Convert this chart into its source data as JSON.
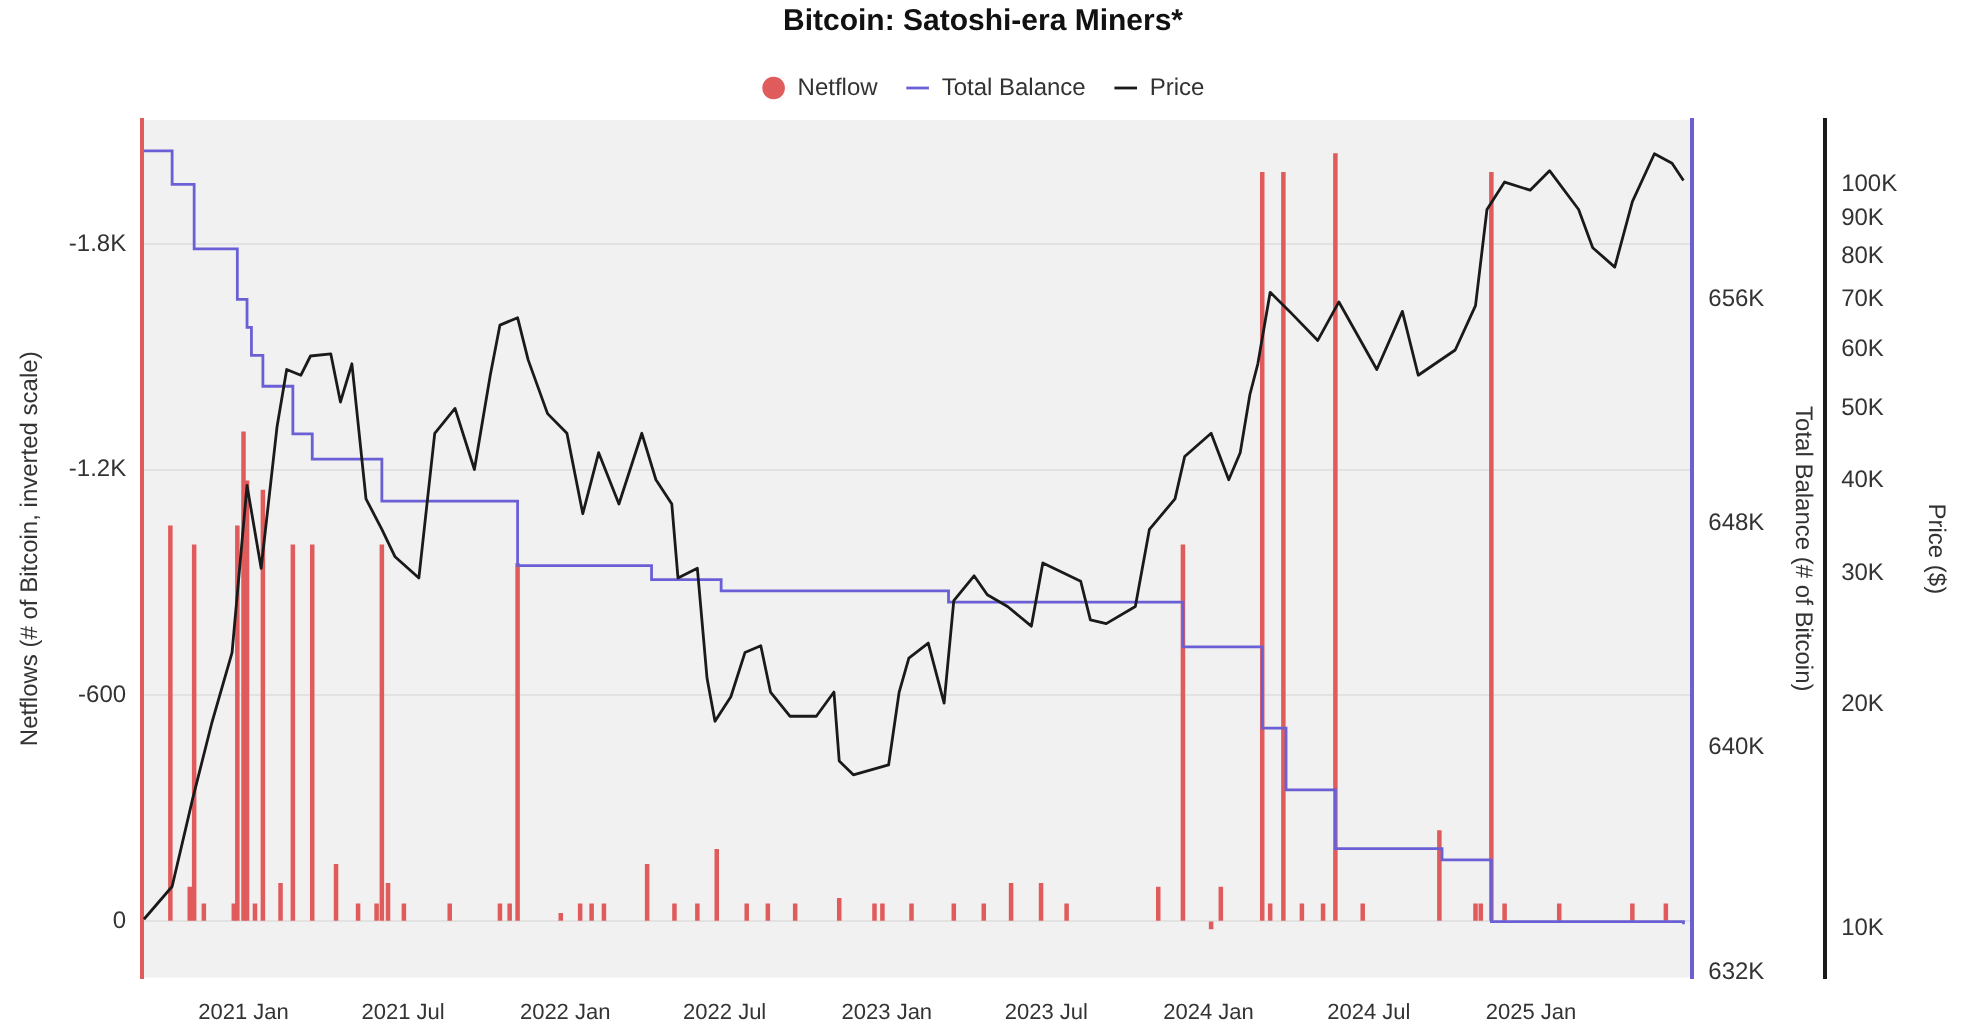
{
  "chart_data": {
    "type": "line",
    "title": "Bitcoin: Satoshi-era Miners*",
    "ylabel": "Netflows (# of Bitcoin, inverted scale)",
    "y2label": "Total Balance (# of Bitcoin)",
    "y3label": "Price ($)",
    "xlim": [
      "2020-09-08",
      "2025-07-03"
    ],
    "xticks": [
      {
        "value": "2021-01-01",
        "label": "2021 Jan"
      },
      {
        "value": "2021-07-01",
        "label": "2021 Jul"
      },
      {
        "value": "2022-01-01",
        "label": "2022 Jan"
      },
      {
        "value": "2022-07-01",
        "label": "2022 Jul"
      },
      {
        "value": "2023-01-01",
        "label": "2023 Jan"
      },
      {
        "value": "2023-07-01",
        "label": "2023 Jul"
      },
      {
        "value": "2024-01-01",
        "label": "2024 Jan"
      },
      {
        "value": "2024-07-01",
        "label": "2024 Jul"
      },
      {
        "value": "2025-01-01",
        "label": "2025 Jan"
      }
    ],
    "ylim": [
      150,
      -2130
    ],
    "yticks": [
      {
        "value": 0,
        "label": "0"
      },
      {
        "value": -600,
        "label": "-600"
      },
      {
        "value": -1200,
        "label": "-1.2K"
      },
      {
        "value": -1800,
        "label": "-1.8K"
      }
    ],
    "y2lim": [
      631.8,
      662.4
    ],
    "y2ticks": [
      {
        "value": 632,
        "label": "632K"
      },
      {
        "value": 640,
        "label": "640K"
      },
      {
        "value": 648,
        "label": "648K"
      },
      {
        "value": 656,
        "label": "656K"
      }
    ],
    "y3lim": [
      8.6,
      122
    ],
    "y3ticks": [
      {
        "value": 10,
        "label": "10K"
      },
      {
        "value": 20,
        "label": "20K"
      },
      {
        "value": 30,
        "label": "30K"
      },
      {
        "value": 40,
        "label": "40K"
      },
      {
        "value": 50,
        "label": "50K"
      },
      {
        "value": 60,
        "label": "60K"
      },
      {
        "value": 70,
        "label": "70K"
      },
      {
        "value": 80,
        "label": "80K"
      },
      {
        "value": 90,
        "label": "90K"
      },
      {
        "value": 100,
        "label": "100K"
      }
    ],
    "log": "y3",
    "grid": "y",
    "legend": "top",
    "marker": "none",
    "series": [
      {
        "name": "Netflow",
        "type": "bar",
        "axis": "y",
        "color": "#e05c5c",
        "x": [
          "2020-10-10",
          "2020-11-01",
          "2020-11-06",
          "2020-11-17",
          "2020-12-21",
          "2020-12-25",
          "2021-01-01",
          "2021-01-05",
          "2021-01-14",
          "2021-01-23",
          "2021-02-12",
          "2021-02-26",
          "2021-03-20",
          "2021-04-16",
          "2021-05-11",
          "2021-06-01",
          "2021-06-07",
          "2021-06-14",
          "2021-07-02",
          "2021-08-23",
          "2021-10-19",
          "2021-10-30",
          "2021-11-08",
          "2021-12-27",
          "2022-01-18",
          "2022-01-31",
          "2022-02-14",
          "2022-04-04",
          "2022-05-05",
          "2022-05-31",
          "2022-06-22",
          "2022-07-26",
          "2022-08-19",
          "2022-09-19",
          "2022-11-08",
          "2022-12-18",
          "2022-12-27",
          "2023-01-29",
          "2023-03-18",
          "2023-04-21",
          "2023-05-22",
          "2023-06-25",
          "2023-07-24",
          "2023-11-05",
          "2023-12-03",
          "2024-01-04",
          "2024-01-15",
          "2024-03-02",
          "2024-03-11",
          "2024-03-26",
          "2024-04-16",
          "2024-05-10",
          "2024-05-24",
          "2024-06-24",
          "2024-09-19",
          "2024-10-30",
          "2024-11-05",
          "2024-11-17",
          "2024-12-02",
          "2025-02-02",
          "2025-04-26",
          "2025-06-03"
        ],
        "values": [
          -1050,
          -90,
          -1000,
          -45,
          -45,
          -1050,
          -1300,
          -1170,
          -45,
          -1145,
          -100,
          -1000,
          -1000,
          -150,
          -45,
          -45,
          -1000,
          -100,
          -45,
          -45,
          -45,
          -45,
          -950,
          -20,
          -45,
          -45,
          -45,
          -150,
          -45,
          -45,
          -190,
          -45,
          -45,
          -45,
          -60,
          -45,
          -45,
          -45,
          -45,
          -45,
          -100,
          -100,
          -45,
          -90,
          -1000,
          20,
          -90,
          -1990,
          -45,
          -1990,
          -45,
          -45,
          -2040,
          -45,
          -240,
          -45,
          -45,
          -1990,
          -45,
          -45,
          -45,
          -45
        ]
      },
      {
        "name": "Total Balance",
        "type": "step",
        "axis": "y2",
        "color": "#6b5fd6",
        "x": [
          "2020-09-10",
          "2020-10-12",
          "2020-11-06",
          "2020-12-25",
          "2021-01-05",
          "2021-01-10",
          "2021-01-23",
          "2021-02-26",
          "2021-03-20",
          "2021-06-07",
          "2021-11-08",
          "2022-04-09",
          "2022-06-27",
          "2023-03-12",
          "2023-12-03",
          "2024-03-02",
          "2024-03-29",
          "2024-05-24",
          "2024-09-22",
          "2024-11-17",
          "2025-06-23"
        ],
        "values": [
          661.3,
          660.1,
          657.8,
          656.0,
          655.0,
          654.0,
          652.9,
          651.2,
          650.3,
          648.8,
          646.5,
          646.0,
          645.6,
          645.2,
          643.6,
          640.7,
          638.5,
          636.4,
          636.0,
          633.8,
          633.7
        ]
      },
      {
        "name": "Price",
        "axis": "y3",
        "color": "#1a1a1a",
        "x": [
          "2020-09-10",
          "2020-10-12",
          "2020-11-04",
          "2020-11-26",
          "2020-12-19",
          "2021-01-05",
          "2021-01-21",
          "2021-02-08",
          "2021-02-19",
          "2021-03-07",
          "2021-03-18",
          "2021-04-10",
          "2021-04-21",
          "2021-05-04",
          "2021-05-20",
          "2021-06-07",
          "2021-06-22",
          "2021-07-19",
          "2021-08-06",
          "2021-08-29",
          "2021-09-20",
          "2021-10-08",
          "2021-10-19",
          "2021-11-08",
          "2021-11-20",
          "2021-12-12",
          "2022-01-03",
          "2022-01-21",
          "2022-02-08",
          "2022-03-03",
          "2022-03-29",
          "2022-04-14",
          "2022-05-02",
          "2022-05-09",
          "2022-05-31",
          "2022-06-11",
          "2022-06-20",
          "2022-07-08",
          "2022-07-24",
          "2022-08-11",
          "2022-08-22",
          "2022-09-13",
          "2022-10-13",
          "2022-11-02",
          "2022-11-08",
          "2022-11-24",
          "2023-01-03",
          "2023-01-15",
          "2023-01-26",
          "2023-02-17",
          "2023-03-07",
          "2023-03-18",
          "2023-04-10",
          "2023-04-25",
          "2023-05-18",
          "2023-06-14",
          "2023-06-27",
          "2023-08-09",
          "2023-08-20",
          "2023-09-07",
          "2023-10-10",
          "2023-10-26",
          "2023-11-24",
          "2023-12-05",
          "2024-01-04",
          "2024-01-24",
          "2024-02-06",
          "2024-02-17",
          "2024-02-26",
          "2024-03-11",
          "2024-04-02",
          "2024-05-04",
          "2024-05-28",
          "2024-07-10",
          "2024-08-08",
          "2024-08-26",
          "2024-10-07",
          "2024-10-30",
          "2024-11-12",
          "2024-12-02",
          "2024-12-31",
          "2025-01-22",
          "2025-02-24",
          "2025-03-12",
          "2025-04-06",
          "2025-04-26",
          "2025-05-21",
          "2025-06-10",
          "2025-06-23"
        ],
        "values": [
          10.3,
          11.4,
          14.9,
          18.9,
          23.5,
          39.4,
          30.5,
          47.2,
          56.4,
          55.4,
          58.8,
          59.2,
          51,
          57.4,
          37.8,
          34.4,
          31.6,
          29.6,
          46.3,
          50,
          41.4,
          55.4,
          64.7,
          66.2,
          58.1,
          49.2,
          46.3,
          36.1,
          43.6,
          37.2,
          46.3,
          40.1,
          37.2,
          29.6,
          30.5,
          21.7,
          19,
          20.5,
          23.5,
          24,
          20.8,
          19.3,
          19.3,
          20.8,
          16.8,
          16.1,
          16.6,
          20.8,
          23.1,
          24.2,
          20.1,
          27.6,
          29.8,
          28.1,
          27.1,
          25.5,
          31,
          29.3,
          26,
          25.7,
          27.1,
          34.4,
          37.8,
          43.1,
          46.3,
          40.1,
          43.6,
          52.2,
          57.4,
          71.6,
          67.5,
          61.7,
          69.5,
          56.4,
          67.5,
          55.4,
          59.9,
          68.7,
          92.5,
          100.7,
          98.2,
          104.3,
          92.5,
          82.2,
          77.4,
          94.8,
          109.9,
          106.7,
          101.2
        ]
      }
    ]
  }
}
